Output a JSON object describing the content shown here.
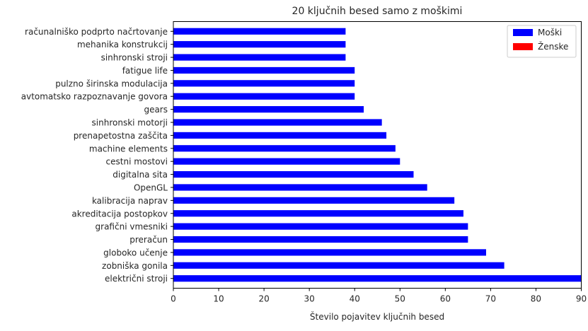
{
  "chart_data": {
    "type": "bar",
    "orientation": "horizontal",
    "title": "20 ključnih besed samo z moškimi",
    "xlabel": "Število pojavitev ključnih besed",
    "ylabel": "",
    "xlim": [
      0,
      90
    ],
    "xticks": [
      "0",
      "10",
      "20",
      "30",
      "40",
      "50",
      "60",
      "70",
      "80",
      "90"
    ],
    "categories": [
      "električni stroji",
      "zobniška gonila",
      "globoko učenje",
      "preračun",
      "grafični vmesniki",
      "akreditacija postopkov",
      "kalibracija naprav",
      "OpenGL",
      "digitalna sita",
      "cestni mostovi",
      "machine elements",
      "prenapetostna zaščita",
      "sinhronski motorji",
      "gears",
      "avtomatsko razpoznavanje govora",
      "pulzno širinska modulacija",
      "fatigue life",
      "sinhronski stroji",
      "mehanika konstrukcij",
      "računalniško podprto načrtovanje"
    ],
    "series": [
      {
        "name": "Moški",
        "color": "#0000ff",
        "values": [
          90,
          73,
          69,
          65,
          65,
          64,
          62,
          56,
          53,
          50,
          49,
          47,
          46,
          42,
          40,
          40,
          40,
          38,
          38,
          38
        ]
      },
      {
        "name": "Ženske",
        "color": "#ff0000",
        "values": [
          0,
          0,
          0,
          0,
          0,
          0,
          0,
          0,
          0,
          0,
          0,
          0,
          0,
          0,
          0,
          0,
          0,
          0,
          0,
          0
        ]
      }
    ],
    "legend_position": "top-right",
    "grid": false
  }
}
